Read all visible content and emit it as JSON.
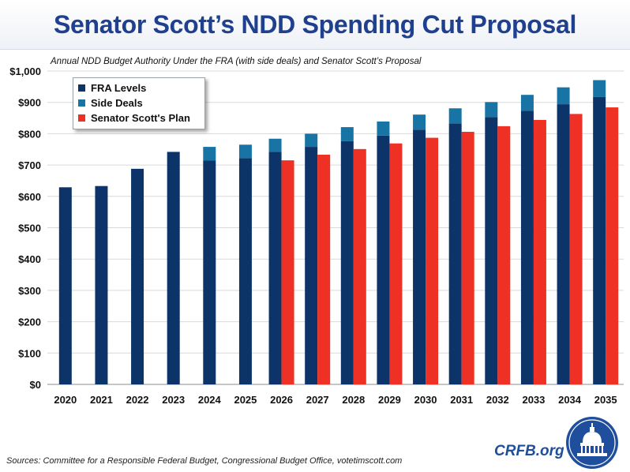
{
  "header": {
    "title": "Senator Scott’s NDD Spending Cut Proposal"
  },
  "footer": {
    "source": "Sources: Committee for a Responsible Federal Budget, Congressional Budget Office, votetimscott.com",
    "brand": "CRFB.org"
  },
  "colors": {
    "fra": "#0c3468",
    "side": "#1874a5",
    "scott": "#ee3124",
    "title": "#1f3f8f",
    "grid": "#d9d9d9"
  },
  "icons": {
    "seal": "capitol-dome-seal-icon"
  },
  "chart_data": {
    "type": "bar",
    "subtitle": "Annual NDD Budget Authority Under the FRA (with side deals) and Senator Scott’s Proposal",
    "categories": [
      "2020",
      "2021",
      "2022",
      "2023",
      "2024",
      "2025",
      "2026",
      "2027",
      "2028",
      "2029",
      "2030",
      "2031",
      "2032",
      "2033",
      "2034",
      "2035"
    ],
    "ylim": [
      0,
      1000
    ],
    "yticks": [
      0,
      100,
      200,
      300,
      400,
      500,
      600,
      700,
      800,
      900,
      1000
    ],
    "ytick_labels": [
      "$0",
      "$100",
      "$200",
      "$300",
      "$400",
      "$500",
      "$600",
      "$700",
      "$800",
      "$900",
      "$1,000"
    ],
    "grid": true,
    "legend_position": "top-left",
    "series": [
      {
        "name": "FRA Levels",
        "stack": "fra",
        "values": [
          629,
          633,
          688,
          742,
          715,
          722,
          742,
          758,
          776,
          794,
          813,
          833,
          853,
          873,
          894,
          917
        ]
      },
      {
        "name": "Side Deals",
        "stack": "fra",
        "values": [
          0,
          0,
          0,
          0,
          43,
          43,
          42,
          42,
          45,
          45,
          48,
          48,
          48,
          51,
          54,
          54
        ]
      },
      {
        "name": "Senator Scott's Plan",
        "stack": "scott",
        "values": [
          null,
          null,
          null,
          null,
          null,
          null,
          715,
          733,
          751,
          769,
          787,
          806,
          824,
          844,
          863,
          884
        ]
      }
    ]
  }
}
